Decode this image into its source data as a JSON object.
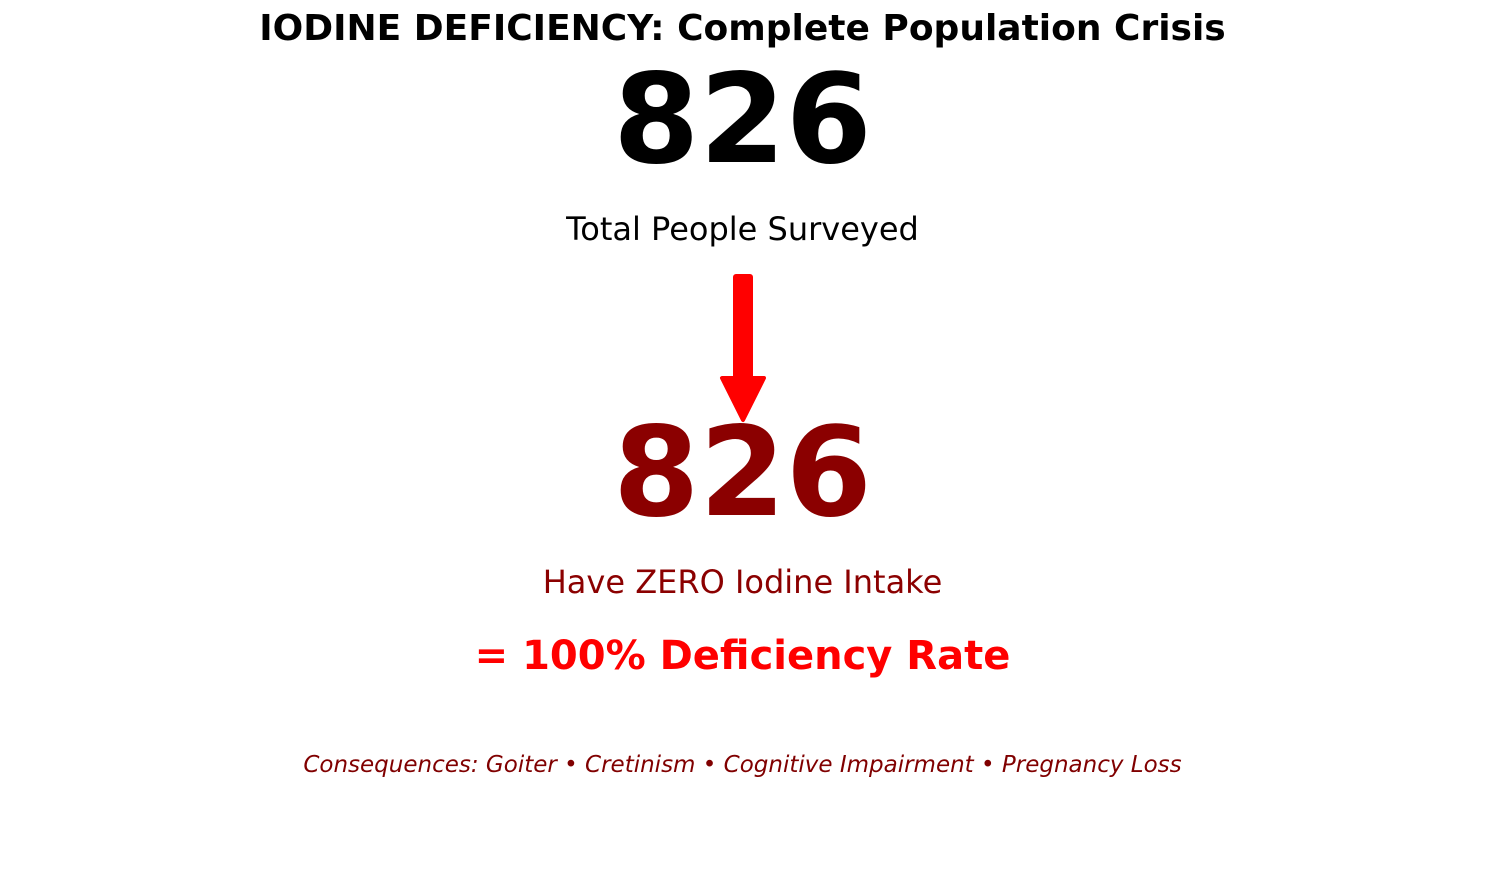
{
  "title": "IODINE DEFICIENCY: Complete Population Crisis",
  "total": {
    "value": "826",
    "label": "Total People Surveyed",
    "color": "#000000"
  },
  "arrow": {
    "icon": "down-arrow-icon",
    "color": "#ff0000"
  },
  "deficient": {
    "value": "826",
    "label": "Have ZERO Iodine Intake",
    "color": "#8b0000"
  },
  "rate": {
    "text": "= 100% Deficiency Rate",
    "color": "#ff0000"
  },
  "consequences": {
    "text": "Consequences: Goiter • Cretinism • Cognitive Impairment • Pregnancy Loss",
    "color": "#800000"
  }
}
